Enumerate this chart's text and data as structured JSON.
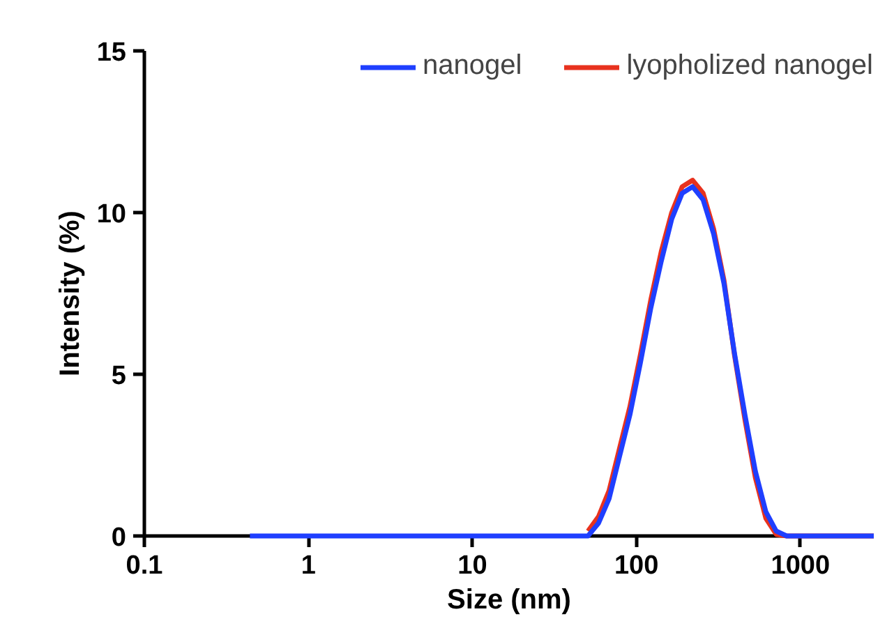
{
  "chart_data": {
    "type": "line",
    "xlabel": "Size (nm)",
    "ylabel": "Intensity (%)",
    "log": "x",
    "xlim": [
      0.1,
      2800
    ],
    "xticks": [
      0.1,
      1,
      10,
      100,
      1000
    ],
    "ylim": [
      0,
      15
    ],
    "yticks": [
      0,
      5,
      10,
      15
    ],
    "grid": false,
    "legend": "top right",
    "marker": "none",
    "line_style": "solid",
    "x": [
      0.44,
      1,
      10,
      40,
      50.7,
      58.8,
      68.1,
      78.8,
      91.3,
      105.7,
      122.4,
      141.8,
      164.2,
      190.1,
      220.2,
      255.0,
      295.3,
      342.0,
      396.1,
      458.7,
      531.2,
      615.1,
      712.4,
      825.0,
      955.4,
      2800
    ],
    "series": [
      {
        "name": "nanogel",
        "color": "#1f3fff",
        "values": [
          0,
          0,
          0,
          0,
          0,
          0.4,
          1.15,
          2.45,
          3.75,
          5.35,
          7.05,
          8.5,
          9.8,
          10.6,
          10.8,
          10.4,
          9.35,
          7.8,
          5.65,
          3.75,
          2.0,
          0.75,
          0.15,
          0,
          0,
          0
        ]
      },
      {
        "name": "lyopholized nanogel",
        "color": "#e8321e",
        "values": [
          null,
          null,
          null,
          null,
          0.15,
          0.6,
          1.4,
          2.7,
          4.0,
          5.6,
          7.3,
          8.8,
          10.0,
          10.8,
          11.0,
          10.6,
          9.5,
          7.9,
          5.6,
          3.6,
          1.8,
          0.55,
          0.05,
          0,
          0,
          0
        ]
      }
    ]
  }
}
